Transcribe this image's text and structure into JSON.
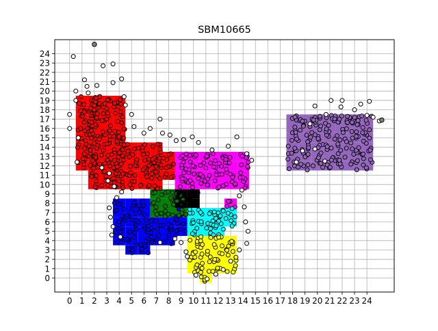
{
  "chart_data": {
    "type": "scatter",
    "title": "SBM10665",
    "xlabel": "",
    "ylabel": "",
    "xlim": [
      -1.2,
      26.2
    ],
    "ylim": [
      -1.5,
      25.5
    ],
    "xticks": [
      "0",
      "1",
      "2",
      "3",
      "4",
      "5",
      "6",
      "7",
      "8",
      "9",
      "10",
      "11",
      "12",
      "13",
      "14",
      "15",
      "16",
      "17",
      "18",
      "19",
      "20",
      "21",
      "22",
      "23",
      "24"
    ],
    "yticks": [
      "0",
      "1",
      "2",
      "3",
      "4",
      "5",
      "6",
      "7",
      "8",
      "9",
      "10",
      "11",
      "12",
      "13",
      "14",
      "15",
      "16",
      "17",
      "18",
      "19",
      "20",
      "21",
      "22",
      "23",
      "24"
    ],
    "grid": true,
    "colors": {
      "red": "#ff0000",
      "blue": "#0000ff",
      "green": "#008000",
      "black": "#000000",
      "magenta": "#ff00ff",
      "cyan": "#00ffff",
      "yellow": "#ffff00",
      "purple": "#9467bd",
      "white": "#ffffff",
      "gray": "#808080"
    },
    "clusters": [
      {
        "color": "red",
        "cells": [
          [
            1,
            12,
            2,
            8
          ],
          [
            2,
            10,
            3,
            10
          ],
          [
            4,
            10,
            1,
            6
          ],
          [
            5,
            10,
            3,
            5
          ],
          [
            7,
            11,
            2,
            3
          ],
          [
            2,
            18,
            1,
            2
          ]
        ]
      },
      {
        "color": "blue",
        "cells": [
          [
            4,
            4,
            3,
            5
          ],
          [
            5,
            3,
            2,
            1
          ],
          [
            7,
            4,
            2,
            3
          ],
          [
            9,
            5,
            1,
            3
          ]
        ]
      },
      {
        "color": "green",
        "cells": [
          [
            7,
            7,
            3,
            3
          ]
        ]
      },
      {
        "color": "black",
        "cells": [
          [
            9,
            8,
            2,
            2
          ]
        ]
      },
      {
        "color": "magenta",
        "cells": [
          [
            9,
            10,
            6,
            4
          ],
          [
            13,
            8,
            1,
            1
          ]
        ]
      },
      {
        "color": "cyan",
        "cells": [
          [
            10,
            5,
            3,
            3
          ],
          [
            12,
            6,
            2,
            2
          ]
        ]
      },
      {
        "color": "yellow",
        "cells": [
          [
            10,
            1,
            4,
            4
          ],
          [
            11,
            0,
            1,
            1
          ]
        ]
      },
      {
        "color": "purple",
        "cells": [
          [
            18,
            12,
            7,
            6
          ],
          [
            20,
            17,
            4,
            1
          ]
        ]
      }
    ],
    "outliers": [
      [
        0,
        17.5
      ],
      [
        0,
        16
      ],
      [
        0.3,
        23.7
      ],
      [
        0.5,
        20
      ],
      [
        0.5,
        19
      ],
      [
        0.6,
        12.4
      ],
      [
        0.7,
        15
      ],
      [
        1.2,
        21.2
      ],
      [
        1.4,
        20.5
      ],
      [
        1.5,
        19.8
      ],
      [
        2.2,
        20.6
      ],
      [
        2.7,
        22.7
      ],
      [
        3.5,
        22.9
      ],
      [
        3.5,
        20.9
      ],
      [
        4.2,
        21.3
      ],
      [
        4.4,
        19.4
      ],
      [
        4.5,
        18.5
      ],
      [
        5,
        17.5
      ],
      [
        5.2,
        16.2
      ],
      [
        6,
        15.5
      ],
      [
        6.5,
        16
      ],
      [
        7.3,
        17
      ],
      [
        7.5,
        15.5
      ],
      [
        8.1,
        15.3
      ],
      [
        8.6,
        14.7
      ],
      [
        9.2,
        14.8
      ],
      [
        9.9,
        15.1
      ],
      [
        10.4,
        14.5
      ],
      [
        11.5,
        13.7
      ],
      [
        12.8,
        14.1
      ],
      [
        13.5,
        15.1
      ],
      [
        14.3,
        13.3
      ],
      [
        14.7,
        12.6
      ],
      [
        2.6,
        11.8
      ],
      [
        3.2,
        11.2
      ],
      [
        3.1,
        10.4
      ],
      [
        3.6,
        9.8
      ],
      [
        4.2,
        9.2
      ],
      [
        3.8,
        8.6
      ],
      [
        3.2,
        7.5
      ],
      [
        3.3,
        6.5
      ],
      [
        3.5,
        5.5
      ],
      [
        3.4,
        4.6
      ],
      [
        4.1,
        4.4
      ],
      [
        7.3,
        3.8
      ],
      [
        8.5,
        4.2
      ],
      [
        9,
        3.8
      ],
      [
        9.4,
        2.8
      ],
      [
        9.5,
        2.3
      ],
      [
        10.2,
        0.3
      ],
      [
        11.1,
        -0.1
      ],
      [
        11.8,
        0.4
      ],
      [
        12.4,
        0.9
      ],
      [
        13,
        1.8
      ],
      [
        13.7,
        3
      ],
      [
        14.3,
        3.7
      ],
      [
        14.4,
        5
      ],
      [
        14.2,
        6
      ],
      [
        14.1,
        7.6
      ],
      [
        13.7,
        8.8
      ],
      [
        13.9,
        9.4
      ],
      [
        18.3,
        12.4
      ],
      [
        18.8,
        13.6
      ],
      [
        19.4,
        16.5
      ],
      [
        19.8,
        18.4
      ],
      [
        20.7,
        17.5
      ],
      [
        21.1,
        19
      ],
      [
        21.9,
        18.3
      ],
      [
        22,
        19
      ],
      [
        23,
        18
      ],
      [
        23.5,
        18.6
      ],
      [
        24.2,
        18.9
      ],
      [
        24,
        17.4
      ],
      [
        24.5,
        17.2
      ],
      [
        25,
        16.8
      ],
      [
        19.8,
        13.8
      ],
      [
        20.6,
        12.5
      ]
    ],
    "gray_points": [
      [
        2,
        25
      ],
      [
        25.2,
        16.9
      ]
    ]
  }
}
